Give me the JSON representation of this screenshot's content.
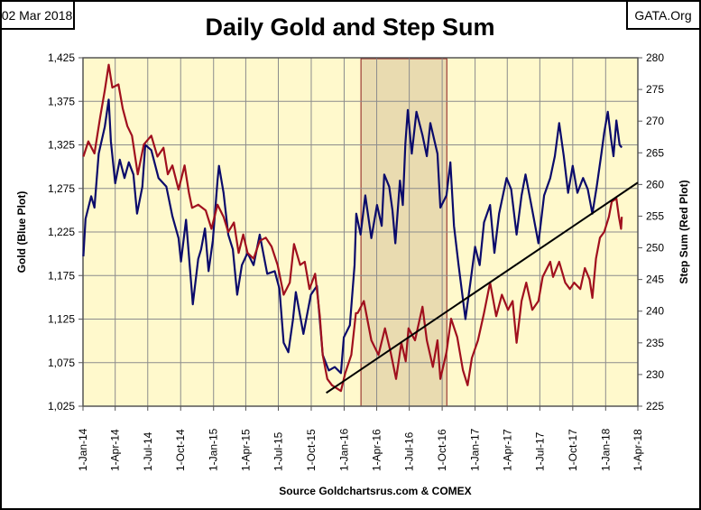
{
  "header": {
    "date_label": "02 Mar 2018",
    "source_label": "GATA.Org"
  },
  "colors": {
    "gold": "#0b0b6b",
    "step_sum": "#a0101e",
    "trend": "#000000",
    "plot_bg": "#fff9cc",
    "shade": "#e9dbb0",
    "shade_border": "#8b1a1a",
    "grid": "#8c8c8c"
  },
  "chart_data": {
    "type": "line",
    "title": "Daily Gold and Step Sum",
    "xlabel": "Source Goldchartsrus.com & COMEX",
    "ylabel": "Gold   (Blue Plot)",
    "y2label": "Step Sum   (Red Plot)",
    "xlim": [
      "2014-01-01",
      "2018-04-01"
    ],
    "ylim": [
      1025,
      1425
    ],
    "y2lim": [
      225,
      280
    ],
    "grid": true,
    "x_ticks": [
      "1-Jan-14",
      "1-Apr-14",
      "1-Jul-14",
      "1-Oct-14",
      "1-Jan-15",
      "1-Apr-15",
      "1-Jul-15",
      "1-Oct-15",
      "1-Jan-16",
      "1-Apr-16",
      "1-Jul-16",
      "1-Oct-16",
      "1-Jan-17",
      "1-Apr-17",
      "1-Jul-17",
      "1-Oct-17",
      "1-Jan-18",
      "1-Apr-18"
    ],
    "x_tick_dates": [
      "2014-01-01",
      "2014-04-01",
      "2014-07-01",
      "2014-10-01",
      "2015-01-01",
      "2015-04-01",
      "2015-07-01",
      "2015-10-01",
      "2016-01-01",
      "2016-04-01",
      "2016-07-01",
      "2016-10-01",
      "2017-01-01",
      "2017-04-01",
      "2017-07-01",
      "2017-10-01",
      "2018-01-01",
      "2018-04-01"
    ],
    "y_ticks": [
      "1,025",
      "1,075",
      "1,125",
      "1,175",
      "1,225",
      "1,275",
      "1,325",
      "1,375",
      "1,425"
    ],
    "y_tick_values": [
      1025,
      1075,
      1125,
      1175,
      1225,
      1275,
      1325,
      1375,
      1425
    ],
    "y2_ticks": [
      "225",
      "230",
      "235",
      "240",
      "245",
      "250",
      "255",
      "260",
      "265",
      "270",
      "275",
      "280"
    ],
    "y2_tick_values": [
      225,
      230,
      235,
      240,
      245,
      250,
      255,
      260,
      265,
      270,
      275,
      280
    ],
    "shaded_period": [
      "2016-02-17",
      "2016-10-14"
    ],
    "trend_line": {
      "axis": "y2",
      "points": [
        [
          "2015-11-12",
          227.1
        ],
        [
          "2018-04-01",
          260.3
        ]
      ]
    },
    "series": [
      {
        "axis": "y",
        "color": "#0b0b6b",
        "points": [
          [
            "2014-01-02",
            1197
          ],
          [
            "2014-01-08",
            1240
          ],
          [
            "2014-01-24",
            1266
          ],
          [
            "2014-02-02",
            1253
          ],
          [
            "2014-02-14",
            1315
          ],
          [
            "2014-03-03",
            1346
          ],
          [
            "2014-03-14",
            1377
          ],
          [
            "2014-03-20",
            1329
          ],
          [
            "2014-04-01",
            1281
          ],
          [
            "2014-04-14",
            1308
          ],
          [
            "2014-04-27",
            1287
          ],
          [
            "2014-05-09",
            1305
          ],
          [
            "2014-05-22",
            1291
          ],
          [
            "2014-06-01",
            1246
          ],
          [
            "2014-06-16",
            1277
          ],
          [
            "2014-06-24",
            1325
          ],
          [
            "2014-07-11",
            1319
          ],
          [
            "2014-07-31",
            1287
          ],
          [
            "2014-08-22",
            1277
          ],
          [
            "2014-09-08",
            1243
          ],
          [
            "2014-09-25",
            1218
          ],
          [
            "2014-10-02",
            1191
          ],
          [
            "2014-10-16",
            1239
          ],
          [
            "2014-11-02",
            1153
          ],
          [
            "2014-11-04",
            1142
          ],
          [
            "2014-11-19",
            1194
          ],
          [
            "2014-11-27",
            1205
          ],
          [
            "2014-12-08",
            1229
          ],
          [
            "2014-12-18",
            1180
          ],
          [
            "2014-12-30",
            1215
          ],
          [
            "2015-01-12",
            1284
          ],
          [
            "2015-01-16",
            1301
          ],
          [
            "2015-01-29",
            1270
          ],
          [
            "2015-02-11",
            1222
          ],
          [
            "2015-02-24",
            1205
          ],
          [
            "2015-03-08",
            1153
          ],
          [
            "2015-03-21",
            1187
          ],
          [
            "2015-04-06",
            1201
          ],
          [
            "2015-04-23",
            1187
          ],
          [
            "2015-05-10",
            1222
          ],
          [
            "2015-05-31",
            1177
          ],
          [
            "2015-06-21",
            1180
          ],
          [
            "2015-07-04",
            1160
          ],
          [
            "2015-07-16",
            1098
          ],
          [
            "2015-07-29",
            1087
          ],
          [
            "2015-08-11",
            1125
          ],
          [
            "2015-08-19",
            1156
          ],
          [
            "2015-09-09",
            1108
          ],
          [
            "2015-09-30",
            1153
          ],
          [
            "2015-10-17",
            1163
          ],
          [
            "2015-11-02",
            1084
          ],
          [
            "2015-11-19",
            1066
          ],
          [
            "2015-12-06",
            1070
          ],
          [
            "2015-12-23",
            1063
          ],
          [
            "2015-12-31",
            1104
          ],
          [
            "2016-01-17",
            1118
          ],
          [
            "2016-01-30",
            1187
          ],
          [
            "2016-02-04",
            1246
          ],
          [
            "2016-02-16",
            1222
          ],
          [
            "2016-02-29",
            1267
          ],
          [
            "2016-03-17",
            1218
          ],
          [
            "2016-04-02",
            1256
          ],
          [
            "2016-04-15",
            1232
          ],
          [
            "2016-04-22",
            1291
          ],
          [
            "2016-05-06",
            1277
          ],
          [
            "2016-05-15",
            1250
          ],
          [
            "2016-05-23",
            1212
          ],
          [
            "2016-06-05",
            1284
          ],
          [
            "2016-06-13",
            1256
          ],
          [
            "2016-06-20",
            1326
          ],
          [
            "2016-06-27",
            1365
          ],
          [
            "2016-07-08",
            1315
          ],
          [
            "2016-07-21",
            1363
          ],
          [
            "2016-08-07",
            1336
          ],
          [
            "2016-08-19",
            1312
          ],
          [
            "2016-08-29",
            1350
          ],
          [
            "2016-09-18",
            1315
          ],
          [
            "2016-09-26",
            1253
          ],
          [
            "2016-10-13",
            1267
          ],
          [
            "2016-10-24",
            1305
          ],
          [
            "2016-11-03",
            1232
          ],
          [
            "2016-11-16",
            1187
          ],
          [
            "2016-12-05",
            1125
          ],
          [
            "2016-12-19",
            1167
          ],
          [
            "2017-01-01",
            1208
          ],
          [
            "2017-01-14",
            1187
          ],
          [
            "2017-01-26",
            1236
          ],
          [
            "2017-02-12",
            1256
          ],
          [
            "2017-02-24",
            1201
          ],
          [
            "2017-03-09",
            1246
          ],
          [
            "2017-03-30",
            1287
          ],
          [
            "2017-04-12",
            1274
          ],
          [
            "2017-04-27",
            1222
          ],
          [
            "2017-05-11",
            1267
          ],
          [
            "2017-05-22",
            1291
          ],
          [
            "2017-06-10",
            1250
          ],
          [
            "2017-06-27",
            1212
          ],
          [
            "2017-07-13",
            1267
          ],
          [
            "2017-07-30",
            1287
          ],
          [
            "2017-08-12",
            1312
          ],
          [
            "2017-08-24",
            1350
          ],
          [
            "2017-09-06",
            1312
          ],
          [
            "2017-09-18",
            1270
          ],
          [
            "2017-10-01",
            1301
          ],
          [
            "2017-10-14",
            1270
          ],
          [
            "2017-10-30",
            1287
          ],
          [
            "2017-11-12",
            1274
          ],
          [
            "2017-11-25",
            1246
          ],
          [
            "2017-12-07",
            1277
          ],
          [
            "2017-12-20",
            1315
          ],
          [
            "2017-12-28",
            1339
          ],
          [
            "2018-01-07",
            1363
          ],
          [
            "2018-01-16",
            1332
          ],
          [
            "2018-01-23",
            1312
          ],
          [
            "2018-01-31",
            1353
          ],
          [
            "2018-02-09",
            1325
          ],
          [
            "2018-02-15",
            1322
          ]
        ]
      },
      {
        "axis": "y2",
        "color": "#a0101e",
        "points": [
          [
            "2014-01-02",
            264.4
          ],
          [
            "2014-01-16",
            266.8
          ],
          [
            "2014-02-02",
            264.9
          ],
          [
            "2014-02-18",
            270.6
          ],
          [
            "2014-03-03",
            274.9
          ],
          [
            "2014-03-14",
            278.9
          ],
          [
            "2014-03-24",
            275.3
          ],
          [
            "2014-04-10",
            275.8
          ],
          [
            "2014-04-22",
            272.0
          ],
          [
            "2014-05-05",
            269.2
          ],
          [
            "2014-05-18",
            267.7
          ],
          [
            "2014-06-03",
            261.6
          ],
          [
            "2014-06-20",
            266.3
          ],
          [
            "2014-07-11",
            267.7
          ],
          [
            "2014-07-28",
            264.4
          ],
          [
            "2014-08-14",
            265.8
          ],
          [
            "2014-08-26",
            261.6
          ],
          [
            "2014-09-08",
            263.0
          ],
          [
            "2014-09-25",
            259.2
          ],
          [
            "2014-10-12",
            263.0
          ],
          [
            "2014-10-24",
            258.7
          ],
          [
            "2014-11-02",
            256.3
          ],
          [
            "2014-11-19",
            256.8
          ],
          [
            "2014-12-10",
            255.9
          ],
          [
            "2014-12-26",
            253.0
          ],
          [
            "2015-01-12",
            256.8
          ],
          [
            "2015-01-29",
            254.9
          ],
          [
            "2015-02-11",
            252.5
          ],
          [
            "2015-02-27",
            254.0
          ],
          [
            "2015-03-12",
            249.2
          ],
          [
            "2015-03-25",
            252.1
          ],
          [
            "2015-04-06",
            249.2
          ],
          [
            "2015-04-23",
            248.3
          ],
          [
            "2015-05-10",
            251.1
          ],
          [
            "2015-05-27",
            251.6
          ],
          [
            "2015-06-12",
            250.2
          ],
          [
            "2015-06-29",
            247.3
          ],
          [
            "2015-07-16",
            242.6
          ],
          [
            "2015-08-02",
            244.5
          ],
          [
            "2015-08-14",
            250.6
          ],
          [
            "2015-08-31",
            247.3
          ],
          [
            "2015-09-13",
            247.8
          ],
          [
            "2015-09-26",
            243.5
          ],
          [
            "2015-10-12",
            245.9
          ],
          [
            "2015-10-25",
            239.2
          ],
          [
            "2015-11-02",
            233.1
          ],
          [
            "2015-11-15",
            229.3
          ],
          [
            "2015-11-28",
            228.3
          ],
          [
            "2015-12-23",
            227.4
          ],
          [
            "2016-01-04",
            230.2
          ],
          [
            "2016-01-21",
            233.1
          ],
          [
            "2016-02-03",
            239.7
          ],
          [
            "2016-02-08",
            239.7
          ],
          [
            "2016-02-25",
            241.6
          ],
          [
            "2016-03-17",
            235.4
          ],
          [
            "2016-04-06",
            233.1
          ],
          [
            "2016-04-24",
            237.3
          ],
          [
            "2016-05-10",
            233.5
          ],
          [
            "2016-05-25",
            229.3
          ],
          [
            "2016-06-09",
            235.0
          ],
          [
            "2016-06-21",
            232.1
          ],
          [
            "2016-06-29",
            237.3
          ],
          [
            "2016-07-17",
            235.4
          ],
          [
            "2016-08-07",
            240.7
          ],
          [
            "2016-08-19",
            235.4
          ],
          [
            "2016-09-05",
            231.2
          ],
          [
            "2016-09-18",
            235.4
          ],
          [
            "2016-09-26",
            229.3
          ],
          [
            "2016-10-13",
            233.5
          ],
          [
            "2016-10-26",
            238.8
          ],
          [
            "2016-11-12",
            235.9
          ],
          [
            "2016-11-28",
            230.7
          ],
          [
            "2016-12-11",
            228.3
          ],
          [
            "2016-12-23",
            232.6
          ],
          [
            "2017-01-09",
            235.4
          ],
          [
            "2017-01-26",
            239.7
          ],
          [
            "2017-02-12",
            244.5
          ],
          [
            "2017-03-01",
            239.2
          ],
          [
            "2017-03-17",
            242.6
          ],
          [
            "2017-04-03",
            240.2
          ],
          [
            "2017-04-16",
            241.6
          ],
          [
            "2017-04-27",
            235.0
          ],
          [
            "2017-05-11",
            241.6
          ],
          [
            "2017-05-24",
            244.5
          ],
          [
            "2017-06-10",
            240.2
          ],
          [
            "2017-06-27",
            241.6
          ],
          [
            "2017-07-09",
            245.4
          ],
          [
            "2017-07-30",
            247.8
          ],
          [
            "2017-08-07",
            245.4
          ],
          [
            "2017-08-24",
            247.8
          ],
          [
            "2017-09-10",
            244.5
          ],
          [
            "2017-09-23",
            243.5
          ],
          [
            "2017-10-05",
            244.5
          ],
          [
            "2017-10-22",
            243.5
          ],
          [
            "2017-11-04",
            246.8
          ],
          [
            "2017-11-17",
            245.0
          ],
          [
            "2017-11-25",
            242.1
          ],
          [
            "2017-12-05",
            248.3
          ],
          [
            "2017-12-16",
            251.6
          ],
          [
            "2017-12-28",
            252.5
          ],
          [
            "2018-01-10",
            254.9
          ],
          [
            "2018-01-18",
            257.3
          ],
          [
            "2018-01-31",
            257.8
          ],
          [
            "2018-02-07",
            254.9
          ],
          [
            "2018-02-13",
            253.0
          ],
          [
            "2018-02-15",
            254.9
          ]
        ]
      }
    ]
  }
}
